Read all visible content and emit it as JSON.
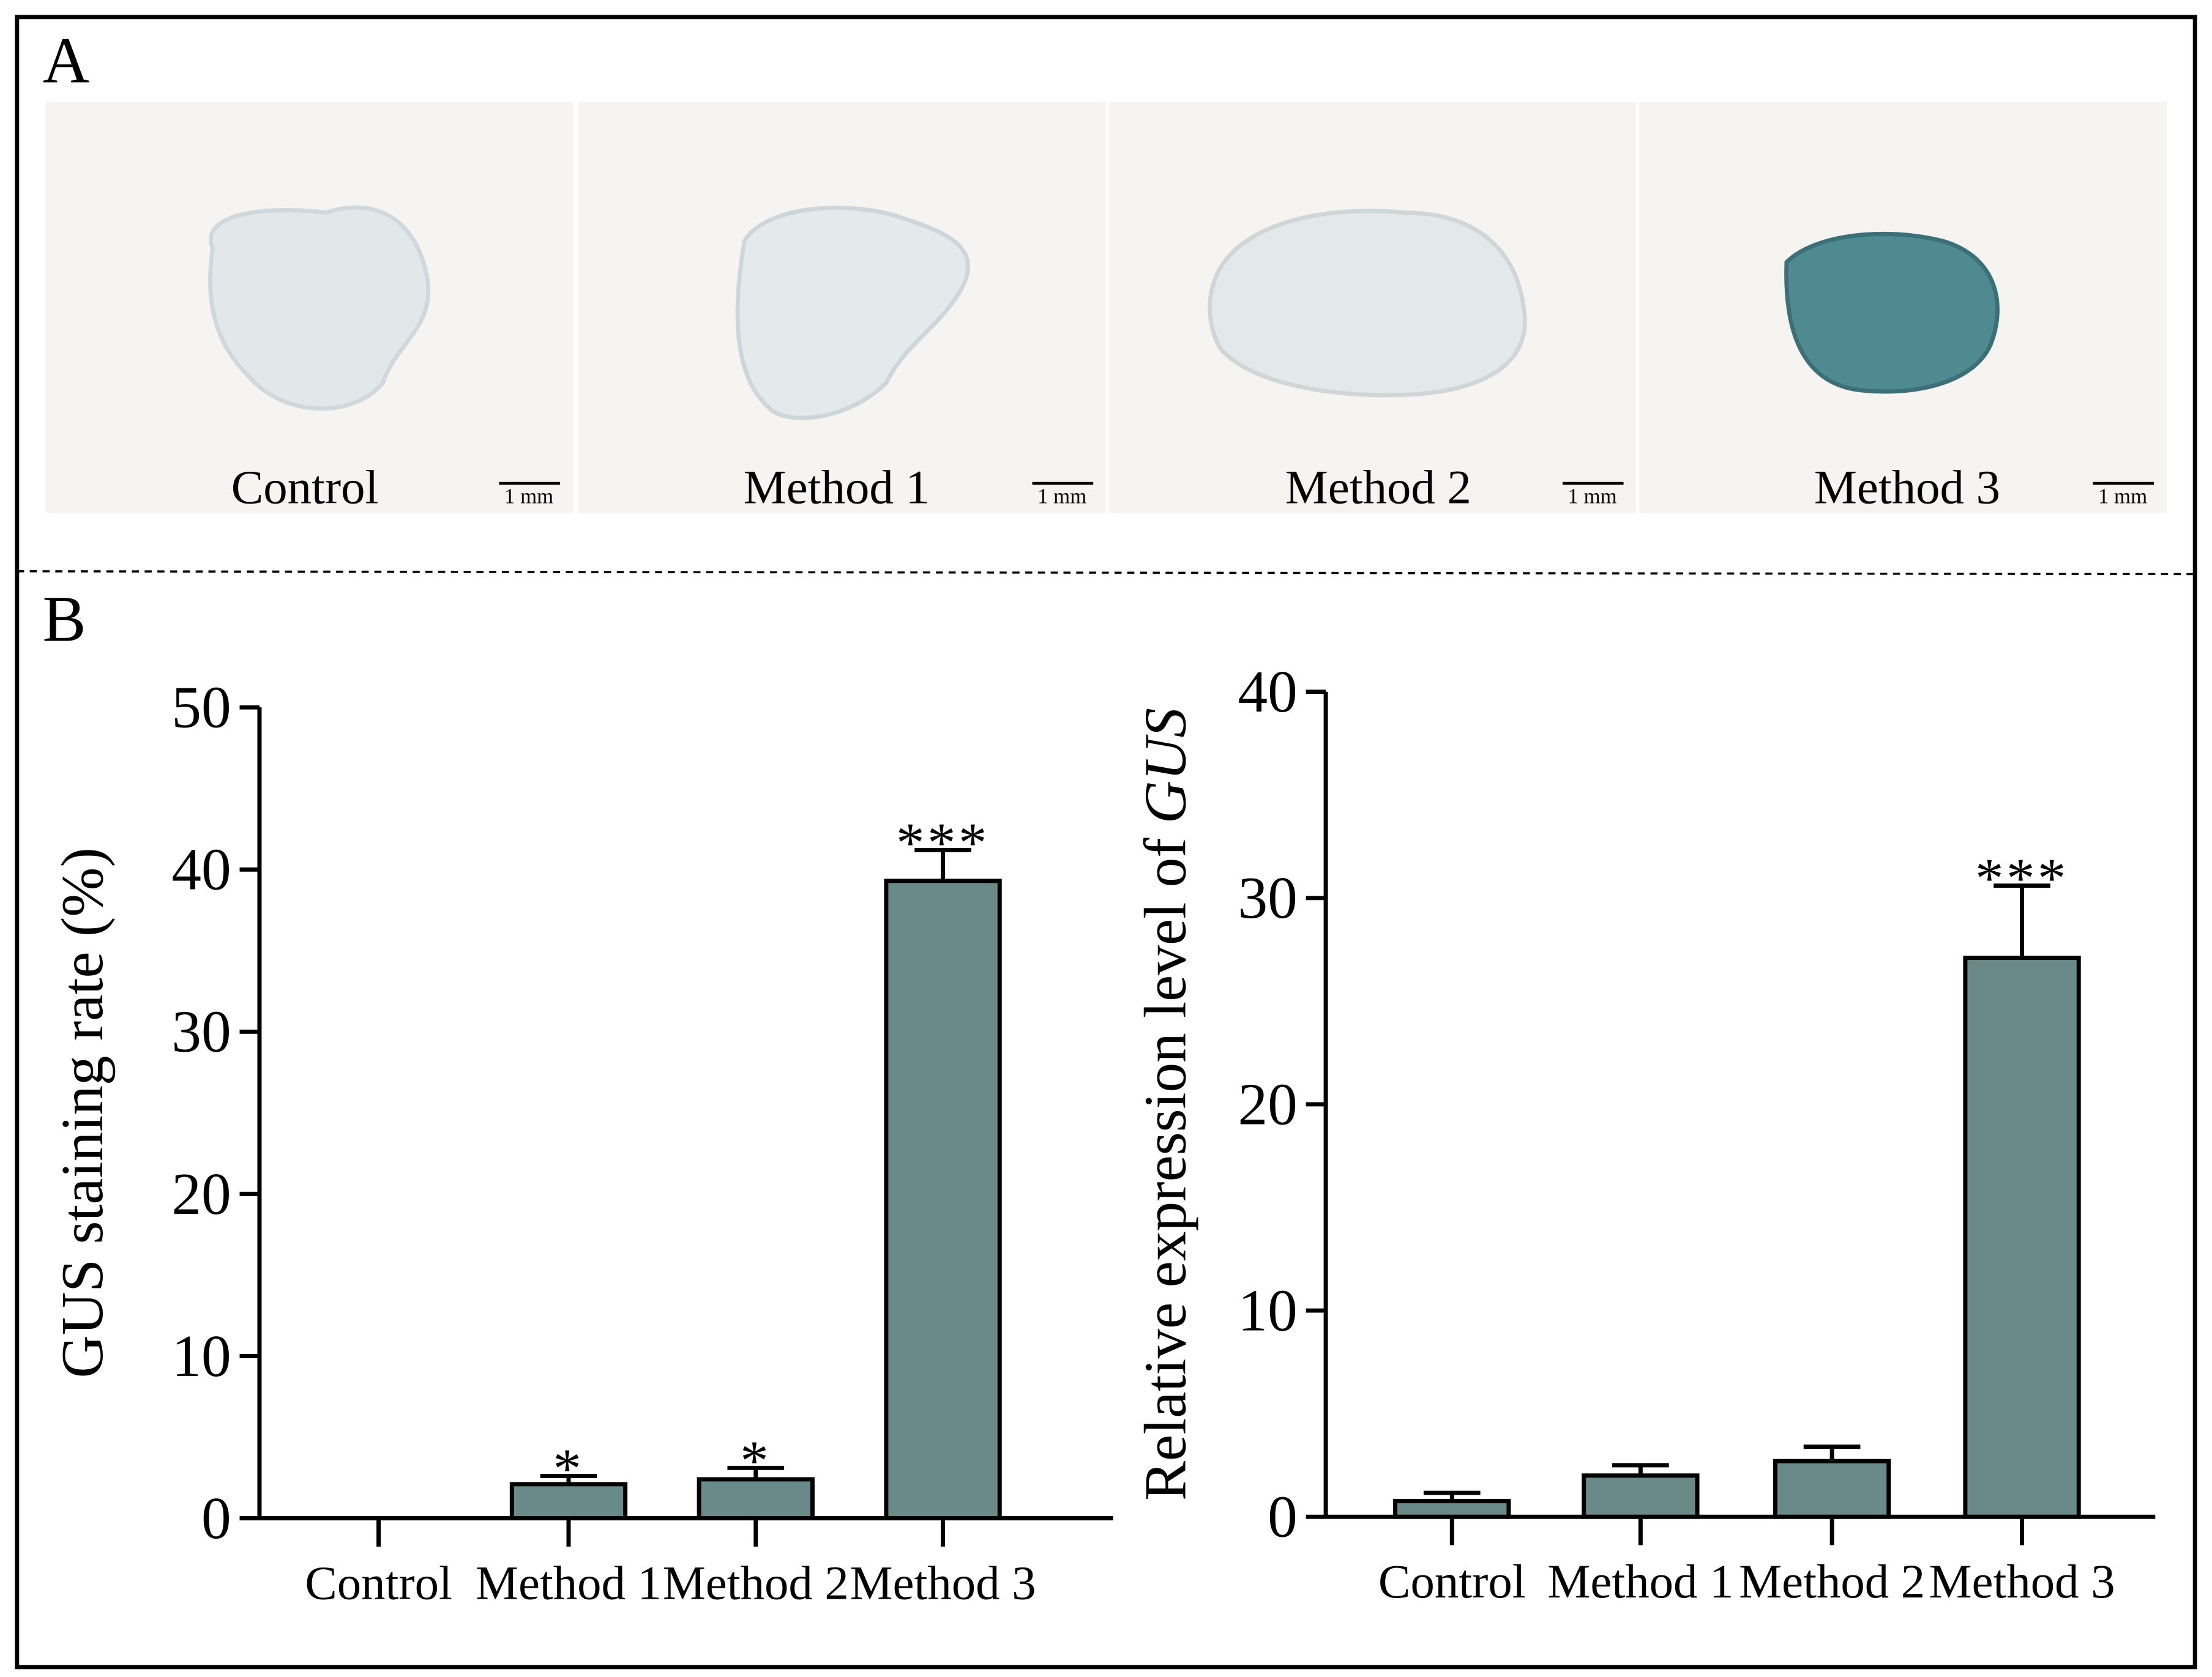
{
  "panel_a": {
    "label": "A",
    "images": [
      {
        "label": "Control",
        "scale_bar": "1 mm"
      },
      {
        "label": "Method 1",
        "scale_bar": "1 mm"
      },
      {
        "label": "Method 2",
        "scale_bar": "1 mm"
      },
      {
        "label": "Method 3",
        "scale_bar": "1 mm"
      }
    ]
  },
  "panel_b": {
    "label": "B"
  },
  "chart_data": [
    {
      "type": "bar",
      "ylabel": {
        "text": "GUS staining rate (%)"
      },
      "categories": [
        "Control",
        "Method 1",
        "Method 2",
        "Method 3"
      ],
      "values": [
        0,
        2.1,
        2.4,
        39.3
      ],
      "errors": [
        0,
        0.5,
        0.7,
        1.9
      ],
      "annotations": [
        null,
        "*",
        "*",
        "***"
      ],
      "color": "#6a8a8a",
      "ylim": [
        0,
        50
      ],
      "yticks": [
        0,
        10,
        20,
        30,
        40,
        50
      ]
    },
    {
      "type": "bar",
      "ylabel": {
        "text": "Relative expression level of",
        "italic": "GUS"
      },
      "categories": [
        "Control",
        "Method 1",
        "Method 2",
        "Method 3"
      ],
      "values": [
        0.76,
        2.0,
        2.7,
        27.1
      ],
      "errors": [
        0.4,
        0.5,
        0.7,
        3.5
      ],
      "annotations": [
        null,
        null,
        null,
        "***"
      ],
      "color": "#6a8a8a",
      "ylim": [
        0,
        40
      ],
      "yticks": [
        0,
        10,
        20,
        30,
        40
      ]
    }
  ]
}
